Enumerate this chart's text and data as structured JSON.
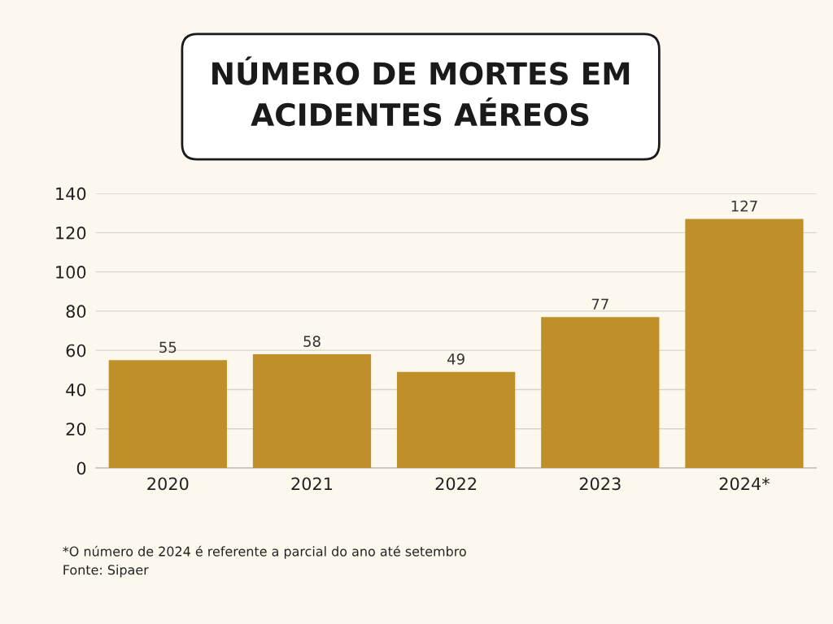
{
  "chart_data": {
    "type": "bar",
    "title": "NÚMERO DE MORTES EM\nACIDENTES AÉREOS",
    "categories": [
      "2020",
      "2021",
      "2022",
      "2023",
      "2024*"
    ],
    "values": [
      55,
      58,
      49,
      77,
      127
    ],
    "color": "#bf8f2a",
    "ylim": [
      0,
      140
    ],
    "yticks": [
      0,
      20,
      40,
      60,
      80,
      100,
      120,
      140
    ],
    "grid": "y",
    "data_labels": true,
    "annotations": [
      "*O número de 2024 é referente a parcial do ano até setembro",
      "Fonte: Sipaer"
    ]
  }
}
